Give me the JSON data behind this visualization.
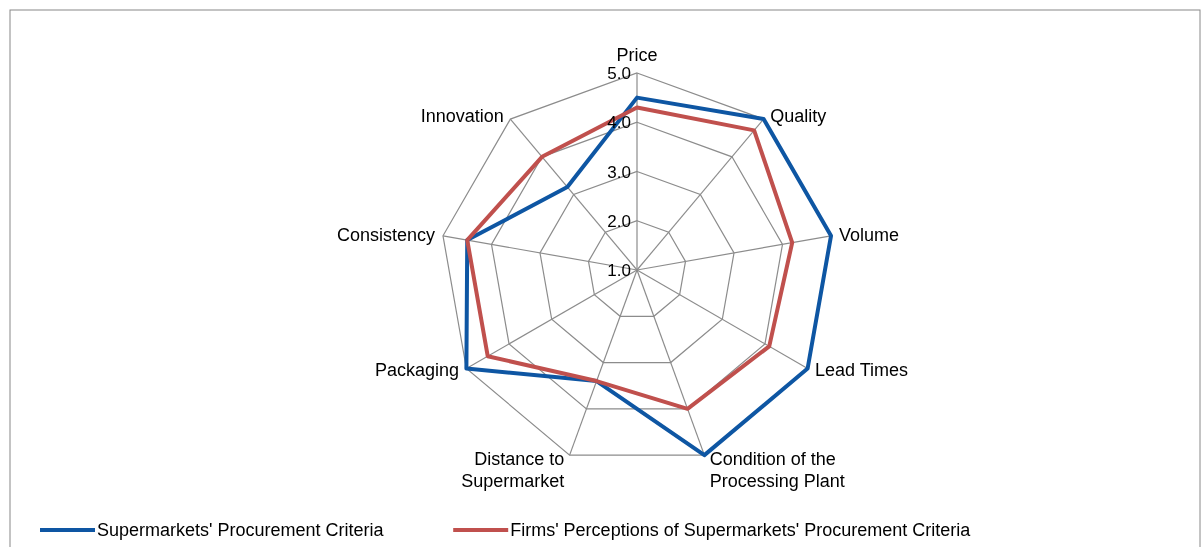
{
  "chart_data": {
    "type": "radar",
    "categories": [
      "Price",
      "Quality",
      "Volume",
      "Lead Times",
      "Condition of the Processing Plant",
      "Distance to Supermarket",
      "Packaging",
      "Consistency",
      "Innovation"
    ],
    "series": [
      {
        "name": "Supermarkets' Procurement Criteria",
        "color": "#0e56a3",
        "values": [
          4.5,
          5.0,
          5.0,
          5.0,
          5.0,
          3.4,
          5.0,
          4.5,
          3.2
        ]
      },
      {
        "name": "Firms' Perceptions of Supermarkets' Procurement Criteria",
        "color": "#c0504d",
        "values": [
          4.3,
          4.7,
          4.2,
          4.1,
          4.0,
          3.4,
          4.5,
          4.5,
          4.0
        ]
      }
    ],
    "ylim": [
      1,
      5
    ],
    "yticks": [
      {
        "value": 1,
        "label": "1.0"
      },
      {
        "value": 2,
        "label": "2.0"
      },
      {
        "value": 3,
        "label": "3.0"
      },
      {
        "value": 4,
        "label": "4.0"
      },
      {
        "value": 5,
        "label": "5.0"
      }
    ],
    "grid": true,
    "legend": "bottom"
  }
}
